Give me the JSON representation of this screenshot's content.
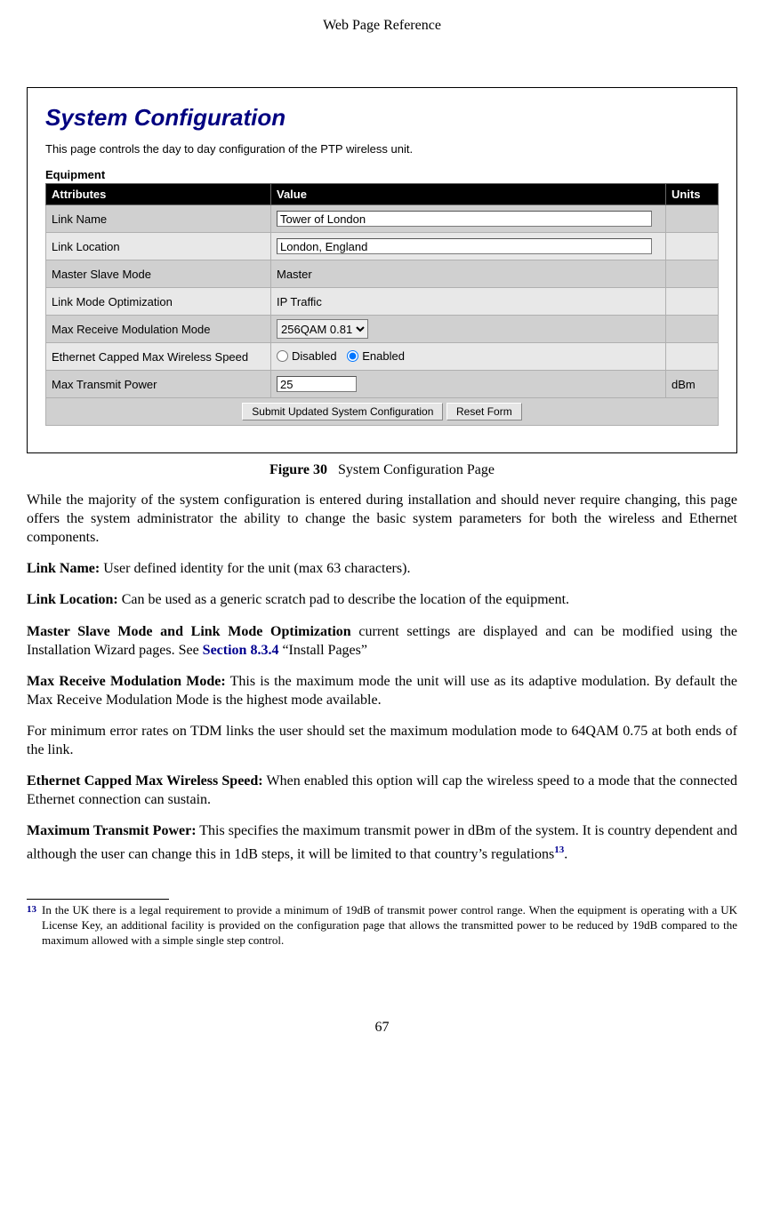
{
  "header": "Web Page Reference",
  "figure": {
    "title": "System Configuration",
    "desc": "This page controls the day to day configuration of the PTP wireless unit.",
    "section_label": "Equipment",
    "columns": {
      "attr": "Attributes",
      "value": "Value",
      "units": "Units"
    },
    "rows": {
      "link_name": {
        "attr": "Link Name",
        "value": "Tower of London",
        "units": ""
      },
      "link_loc": {
        "attr": "Link Location",
        "value": "London, England",
        "units": ""
      },
      "ms_mode": {
        "attr": "Master Slave Mode",
        "value": "Master",
        "units": ""
      },
      "lm_opt": {
        "attr": "Link Mode Optimization",
        "value": "IP Traffic",
        "units": ""
      },
      "max_rx": {
        "attr": "Max Receive Modulation Mode",
        "value": "256QAM 0.81",
        "units": ""
      },
      "eth_cap": {
        "attr": "Ethernet Capped Max Wireless Speed",
        "opt_disabled": "Disabled",
        "opt_enabled": "Enabled",
        "units": ""
      },
      "max_tx": {
        "attr": "Max Transmit Power",
        "value": "25",
        "units": "dBm"
      }
    },
    "buttons": {
      "submit": "Submit Updated System Configuration",
      "reset": "Reset Form"
    }
  },
  "caption": {
    "label": "Figure 30",
    "text": "System Configuration Page"
  },
  "paras": {
    "intro": "While the majority of the system configuration is entered during installation and should never require changing, this page offers the system administrator the ability to change the basic system parameters for both the wireless and Ethernet components.",
    "link_name_term": "Link Name:",
    "link_name_body": " User defined identity for the unit (max 63 characters).",
    "link_loc_term": "Link Location:",
    "link_loc_body": " Can be used as a generic scratch pad to describe the location of the equipment.",
    "mslm_term": "Master Slave Mode and Link Mode Optimization",
    "mslm_body_a": " current settings are displayed and can be modified using the Installation Wizard pages. See ",
    "mslm_link": "Section 8.3.4",
    "mslm_body_b": " “Install Pages”",
    "maxrx_term": "Max Receive Modulation Mode:",
    "maxrx_body": " This is the maximum mode the unit will use as its adaptive modulation. By default the Max Receive Modulation Mode is the highest mode available.",
    "tdm": "For minimum error rates on TDM links the user should set the maximum modulation mode to 64QAM 0.75 at both ends of the link.",
    "eth_term": "Ethernet Capped Max Wireless Speed:",
    "eth_body": " When enabled this option will cap the wireless speed to a mode that the connected Ethernet connection can sustain.",
    "txp_term": "Maximum Transmit Power:",
    "txp_body_a": " This specifies the maximum transmit power in dBm of the system. It is country dependent and although the user can change this in 1dB steps, it will be limited to that country’s regulations",
    "txp_fn_mark": "13",
    "txp_body_b": "."
  },
  "footnote": {
    "mark": "13",
    "text": "In the UK there is a legal requirement to provide a minimum of 19dB of transmit power control range. When the equipment is operating with a UK License Key, an additional facility is provided on the configuration page that allows the transmitted power to be reduced by 19dB compared to the maximum allowed with a simple single step control."
  },
  "page_number": "67"
}
